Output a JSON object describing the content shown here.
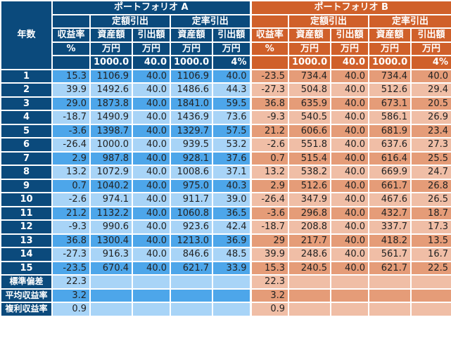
{
  "colors": {
    "header_a": "#0b4a7c",
    "header_b": "#d0602a",
    "a_dark": "#4da6ea",
    "a_light": "#a8d4f7",
    "b_dark": "#e59c78",
    "b_light": "#f0bea6"
  },
  "header": {
    "year": "年数",
    "portfolio_a": "ポートフォリオ A",
    "portfolio_b": "ポートフォリオ B",
    "fixed_amount": "定額引出",
    "fixed_rate": "定率引出",
    "return_rate": "収益率",
    "assets": "資産額",
    "withdrawal": "引出額",
    "unit_pct": "%",
    "unit_yen": "万円",
    "init_assets": "1000.0",
    "init_withdrawal": "40.0",
    "init_rate": "4%"
  },
  "rows": [
    {
      "year": "1",
      "a": [
        "15.3",
        "1106.9",
        "40.0",
        "1106.9",
        "40.0"
      ],
      "b": [
        "-23.5",
        "734.4",
        "40.0",
        "734.4",
        "40.0"
      ]
    },
    {
      "year": "2",
      "a": [
        "39.9",
        "1492.6",
        "40.0",
        "1486.6",
        "44.3"
      ],
      "b": [
        "-27.3",
        "504.8",
        "40.0",
        "512.6",
        "29.4"
      ]
    },
    {
      "year": "3",
      "a": [
        "29.0",
        "1873.8",
        "40.0",
        "1841.0",
        "59.5"
      ],
      "b": [
        "36.8",
        "635.9",
        "40.0",
        "673.1",
        "20.5"
      ]
    },
    {
      "year": "4",
      "a": [
        "-18.7",
        "1490.9",
        "40.0",
        "1436.9",
        "73.6"
      ],
      "b": [
        "-9.3",
        "540.5",
        "40.0",
        "586.1",
        "26.9"
      ]
    },
    {
      "year": "5",
      "a": [
        "-3.6",
        "1398.7",
        "40.0",
        "1329.7",
        "57.5"
      ],
      "b": [
        "21.2",
        "606.6",
        "40.0",
        "681.9",
        "23.4"
      ]
    },
    {
      "year": "6",
      "a": [
        "-26.4",
        "1000.0",
        "40.0",
        "939.5",
        "53.2"
      ],
      "b": [
        "-2.6",
        "551.8",
        "40.0",
        "637.6",
        "27.3"
      ]
    },
    {
      "year": "7",
      "a": [
        "2.9",
        "987.8",
        "40.0",
        "928.1",
        "37.6"
      ],
      "b": [
        "0.7",
        "515.4",
        "40.0",
        "616.4",
        "25.5"
      ]
    },
    {
      "year": "8",
      "a": [
        "13.2",
        "1072.9",
        "40.0",
        "1008.6",
        "37.1"
      ],
      "b": [
        "13.2",
        "538.2",
        "40.0",
        "669.9",
        "24.7"
      ]
    },
    {
      "year": "9",
      "a": [
        "0.7",
        "1040.2",
        "40.0",
        "975.0",
        "40.3"
      ],
      "b": [
        "2.9",
        "512.6",
        "40.0",
        "661.7",
        "26.8"
      ]
    },
    {
      "year": "10",
      "a": [
        "-2.6",
        "974.1",
        "40.0",
        "911.7",
        "39.0"
      ],
      "b": [
        "-26.4",
        "347.9",
        "40.0",
        "467.6",
        "26.5"
      ]
    },
    {
      "year": "11",
      "a": [
        "21.2",
        "1132.2",
        "40.0",
        "1060.8",
        "36.5"
      ],
      "b": [
        "-3.6",
        "296.8",
        "40.0",
        "432.7",
        "18.7"
      ]
    },
    {
      "year": "12",
      "a": [
        "-9.3",
        "990.6",
        "40.0",
        "923.6",
        "42.4"
      ],
      "b": [
        "-18.7",
        "208.8",
        "40.0",
        "337.7",
        "17.3"
      ]
    },
    {
      "year": "13",
      "a": [
        "36.8",
        "1300.4",
        "40.0",
        "1213.0",
        "36.9"
      ],
      "b": [
        "29",
        "217.7",
        "40.0",
        "418.2",
        "13.5"
      ]
    },
    {
      "year": "14",
      "a": [
        "-27.3",
        "916.3",
        "40.0",
        "846.6",
        "48.5"
      ],
      "b": [
        "39.9",
        "248.6",
        "40.0",
        "561.7",
        "16.7"
      ]
    },
    {
      "year": "15",
      "a": [
        "-23.5",
        "670.4",
        "40.0",
        "621.7",
        "33.9"
      ],
      "b": [
        "15.3",
        "240.5",
        "40.0",
        "621.7",
        "22.5"
      ]
    }
  ],
  "summary": [
    {
      "label": "標準偏差",
      "a": "22.3",
      "b": "22.3"
    },
    {
      "label": "平均収益率",
      "a": "3.2",
      "b": "3.2"
    },
    {
      "label": "複利収益率",
      "a": "0.9",
      "b": "0.9"
    }
  ]
}
